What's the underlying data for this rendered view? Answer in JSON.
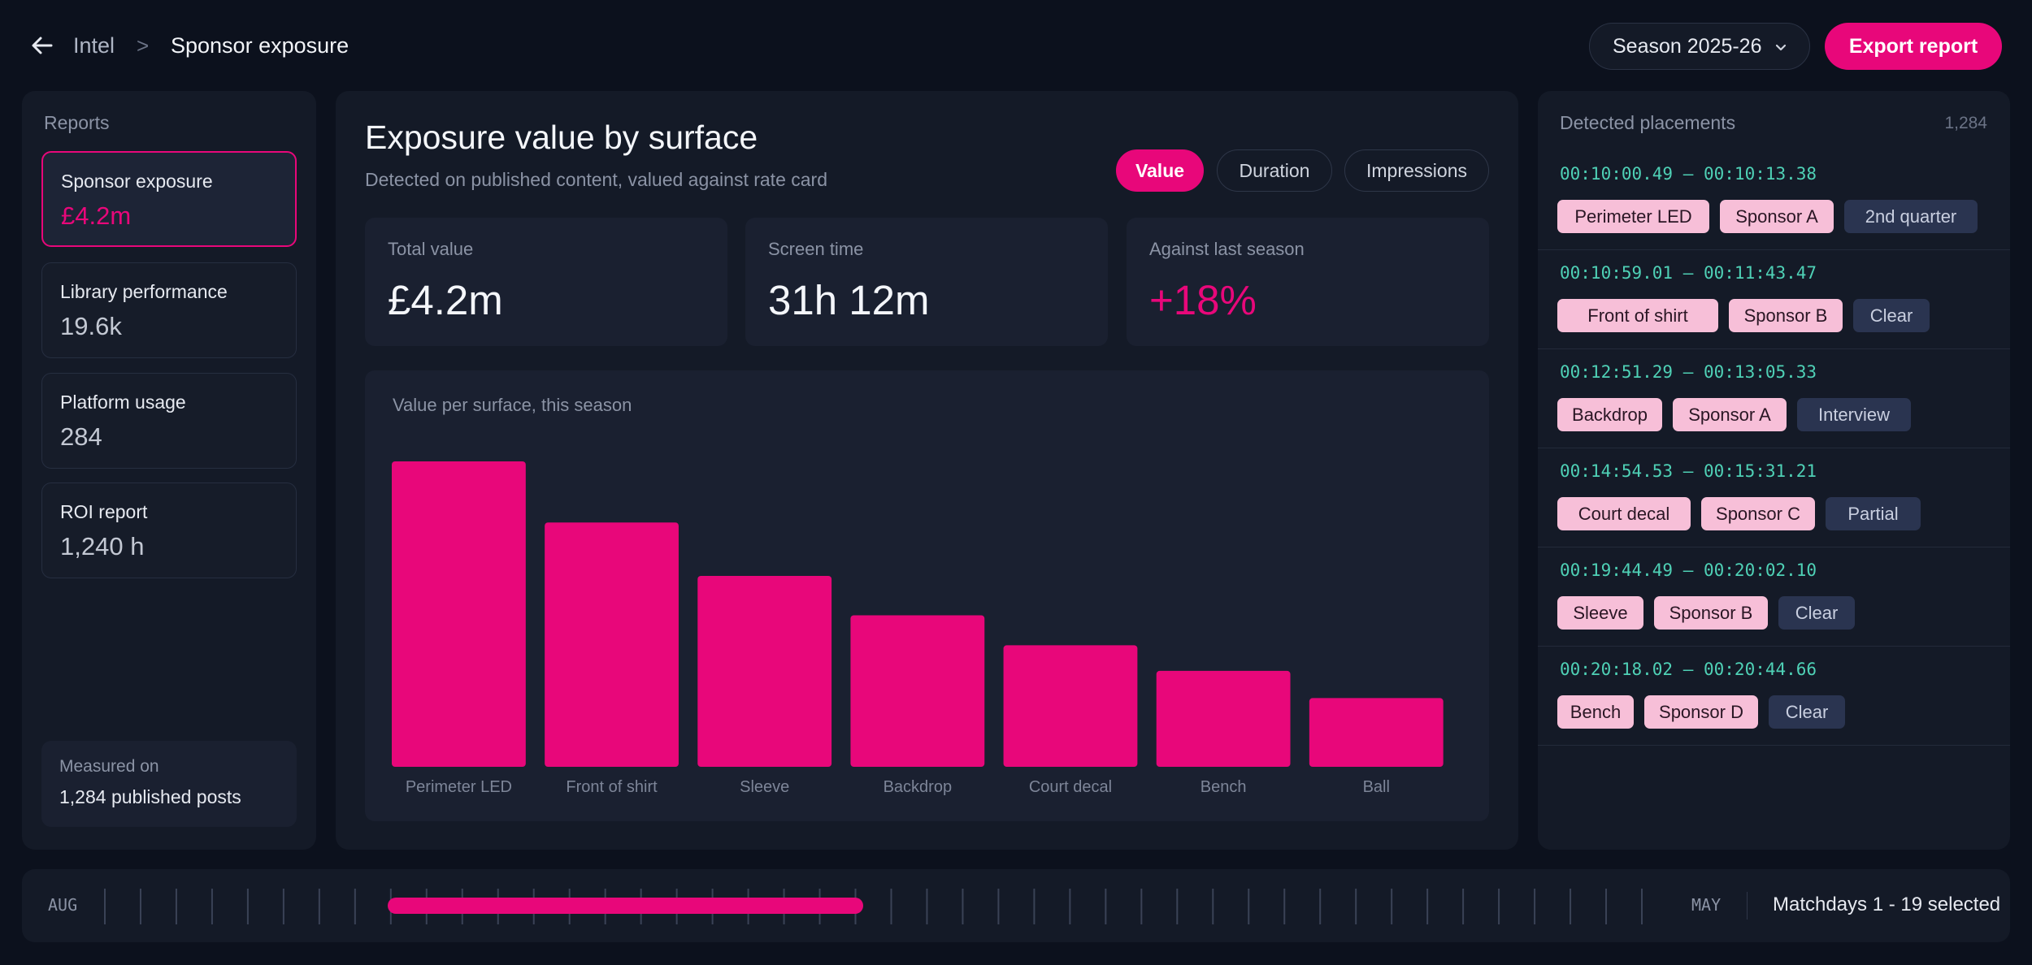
{
  "header": {
    "breadcrumb_root": "Intel",
    "breadcrumb_separator": ">",
    "breadcrumb_current": "Sponsor exposure",
    "season_select": "Season 2025-26",
    "export_label": "Export report",
    "icons": {
      "back": "arrow-left-icon",
      "dropdown": "chevron-down-icon"
    }
  },
  "sidebar": {
    "heading": "Reports",
    "items": [
      {
        "label": "Sponsor exposure",
        "value": "£4.2m",
        "active": true
      },
      {
        "label": "Library performance",
        "value": "19.6k",
        "active": false
      },
      {
        "label": "Platform usage",
        "value": "284",
        "active": false
      },
      {
        "label": "ROI report",
        "value": "1,240 h",
        "active": false
      }
    ],
    "measured_label": "Measured on",
    "measured_value": "1,284 published posts"
  },
  "main": {
    "title": "Exposure value by surface",
    "subtitle": "Detected on published content, valued against rate card",
    "toggles": [
      {
        "label": "Value",
        "active": true
      },
      {
        "label": "Duration",
        "active": false
      },
      {
        "label": "Impressions",
        "active": false
      }
    ],
    "stats": [
      {
        "label": "Total value",
        "value": "£4.2m"
      },
      {
        "label": "Screen time",
        "value": "31h 12m"
      },
      {
        "label": "Against last season",
        "value": "+18%"
      }
    ]
  },
  "chart_data": {
    "type": "bar",
    "title": "Value per surface, this season",
    "categories": [
      "Perimeter LED",
      "Front of shirt",
      "Sleeve",
      "Backdrop",
      "Court decal",
      "Bench",
      "Ball"
    ],
    "values": [
      100,
      80,
      62.5,
      49.6,
      39.8,
      31.4,
      22.5
    ],
    "ylim": [
      0,
      100
    ],
    "grid": false,
    "color": "#e8077a"
  },
  "placements": {
    "heading": "Detected placements",
    "count": "1,284",
    "items": [
      {
        "time": "00:10:00.49 – 00:10:13.38",
        "surface": "Perimeter LED",
        "sponsor": "Sponsor A",
        "status": "2nd quarter"
      },
      {
        "time": "00:10:59.01 – 00:11:43.47",
        "surface": "Front of shirt",
        "sponsor": "Sponsor B",
        "status": "Clear"
      },
      {
        "time": "00:12:51.29 – 00:13:05.33",
        "surface": "Backdrop",
        "sponsor": "Sponsor A",
        "status": "Interview"
      },
      {
        "time": "00:14:54.53 – 00:15:31.21",
        "surface": "Court decal",
        "sponsor": "Sponsor C",
        "status": "Partial"
      },
      {
        "time": "00:19:44.49 – 00:20:02.10",
        "surface": "Sleeve",
        "sponsor": "Sponsor B",
        "status": "Clear"
      },
      {
        "time": "00:20:18.02 – 00:20:44.66",
        "surface": "Bench",
        "sponsor": "Sponsor D",
        "status": "Clear"
      }
    ]
  },
  "timeline": {
    "start_label": "AUG",
    "end_label": "MAY",
    "selection_label": "Matchdays 1 - 19 selected",
    "selected_range": [
      0.2,
      0.5
    ]
  },
  "colors": {
    "accent": "#e8077a",
    "background": "#0c111d",
    "panel": "#141a27",
    "timestamp": "#4fd1b6"
  }
}
